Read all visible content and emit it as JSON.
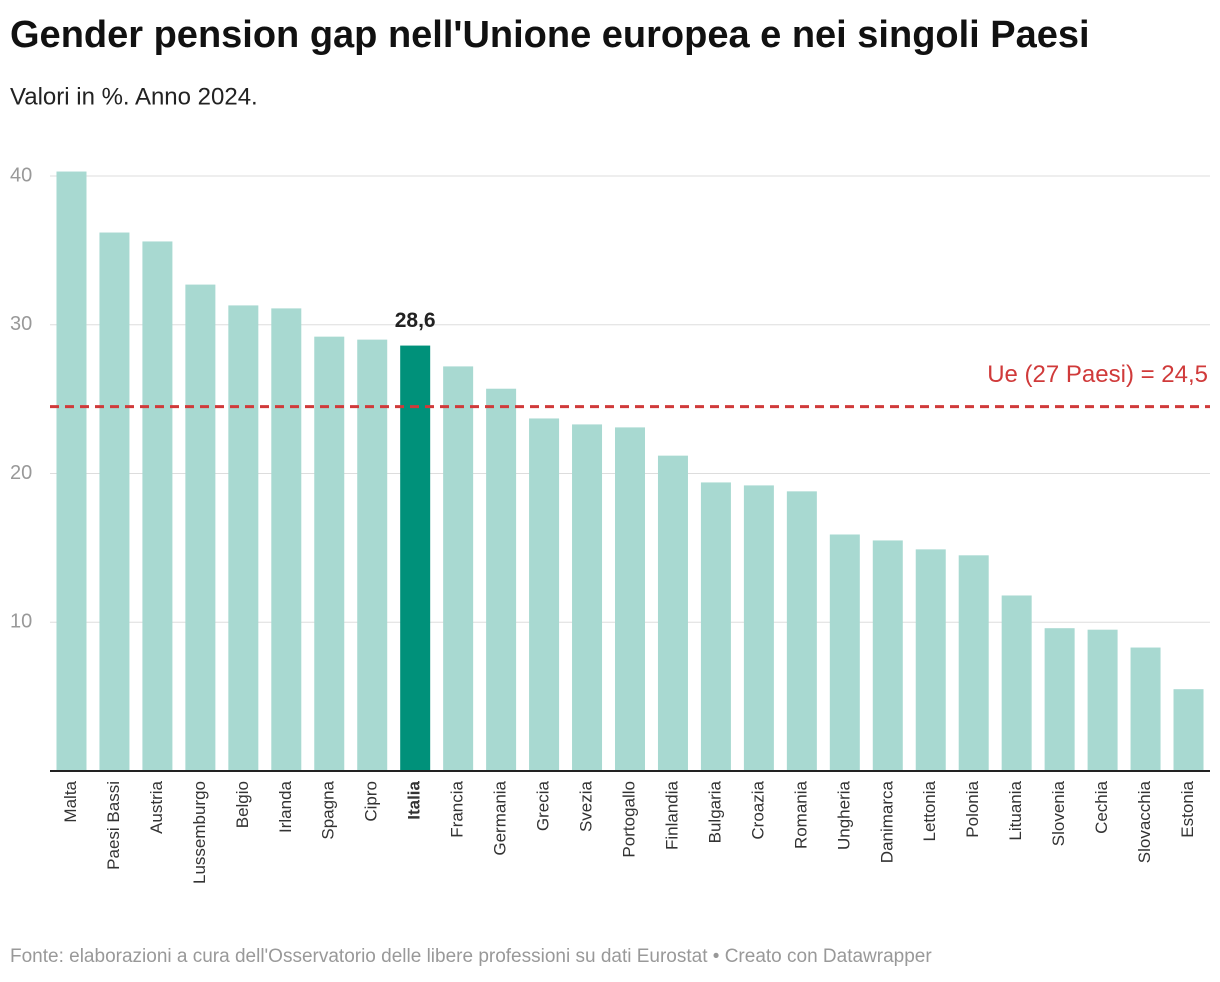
{
  "chart_data": {
    "type": "bar",
    "title": "Gender pension gap nell'Unione europea e nei singoli Paesi",
    "subtitle": "Valori in %. Anno 2024.",
    "source": "Fonte: elaborazioni a cura dell'Osservatorio delle libere professioni su dati Eurostat • Creato con Datawrapper",
    "categories": [
      "Malta",
      "Paesi Bassi",
      "Austria",
      "Lussemburgo",
      "Belgio",
      "Irlanda",
      "Spagna",
      "Cipro",
      "Italia",
      "Francia",
      "Germania",
      "Grecia",
      "Svezia",
      "Portogallo",
      "Finlandia",
      "Bulgaria",
      "Croazia",
      "Romania",
      "Ungheria",
      "Danimarca",
      "Lettonia",
      "Polonia",
      "Lituania",
      "Slovenia",
      "Cechia",
      "Slovacchia",
      "Estonia"
    ],
    "values": [
      40.3,
      36.2,
      35.6,
      32.7,
      31.3,
      31.1,
      29.2,
      29.0,
      28.6,
      27.2,
      25.7,
      23.7,
      23.3,
      23.1,
      21.2,
      19.4,
      19.2,
      18.8,
      15.9,
      15.5,
      14.9,
      14.5,
      11.8,
      9.6,
      9.5,
      8.3,
      5.5
    ],
    "value_labels": [
      null,
      null,
      null,
      null,
      null,
      null,
      null,
      null,
      "28,6",
      null,
      null,
      null,
      null,
      null,
      null,
      null,
      null,
      null,
      null,
      null,
      null,
      null,
      null,
      null,
      null,
      null,
      null
    ],
    "colors": [
      "#a8d9d1",
      "#a8d9d1",
      "#a8d9d1",
      "#a8d9d1",
      "#a8d9d1",
      "#a8d9d1",
      "#a8d9d1",
      "#a8d9d1",
      "#00917a",
      "#a8d9d1",
      "#a8d9d1",
      "#a8d9d1",
      "#a8d9d1",
      "#a8d9d1",
      "#a8d9d1",
      "#a8d9d1",
      "#a8d9d1",
      "#a8d9d1",
      "#a8d9d1",
      "#a8d9d1",
      "#a8d9d1",
      "#a8d9d1",
      "#a8d9d1",
      "#a8d9d1",
      "#a8d9d1",
      "#a8d9d1",
      "#a8d9d1"
    ],
    "reference_line": {
      "value": 24.5,
      "label": "Ue (27 Paesi) = 24,5",
      "color": "#d03a3a"
    },
    "ylim": [
      0,
      40
    ],
    "yticks": [
      10,
      20,
      30,
      40
    ],
    "grid": true
  }
}
